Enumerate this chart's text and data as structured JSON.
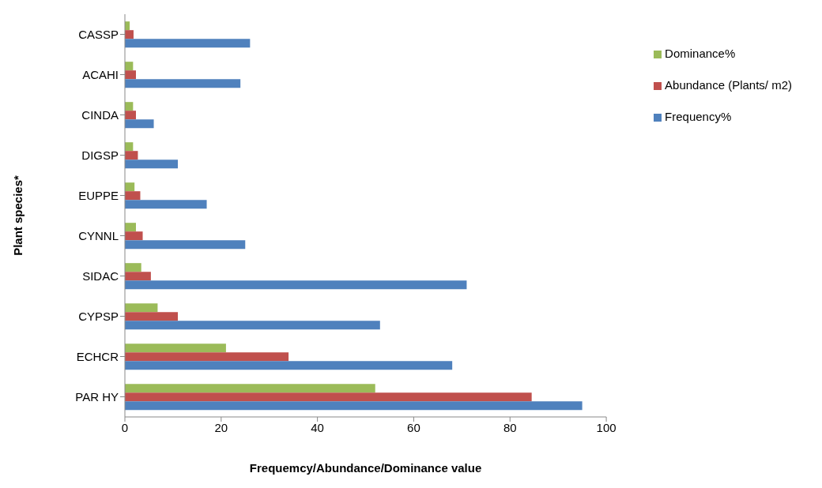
{
  "chart_data": {
    "type": "bar",
    "orientation": "horizontal",
    "xlabel": "Frequemcy/Abundance/Dominance value",
    "ylabel": "Plant species*",
    "categories": [
      "CASSP",
      "ACAHI",
      "CINDA",
      "DIGSP",
      "EUPPE",
      "CYNNL",
      "SIDAC",
      "CYPSP",
      "ECHCR",
      "PAR HY"
    ],
    "series": [
      {
        "name": "Dominance%",
        "color": "#9bbb59",
        "values": [
          1,
          1.7,
          1.7,
          1.7,
          2,
          2.3,
          3.4,
          6.8,
          21,
          52
        ]
      },
      {
        "name": "Abundance (Plants/ m2)",
        "color": "#c0504d",
        "values": [
          1.8,
          2.3,
          2.3,
          2.7,
          3.2,
          3.7,
          5.4,
          11,
          34,
          84.5
        ]
      },
      {
        "name": "Frequency%",
        "color": "#4f81bd",
        "values": [
          26,
          24,
          6,
          11,
          17,
          25,
          71,
          53,
          68,
          95
        ]
      }
    ],
    "xlim": [
      0,
      100
    ],
    "xticks": [
      0,
      20,
      40,
      60,
      80,
      100
    ],
    "grid": false,
    "legend": "top right"
  }
}
